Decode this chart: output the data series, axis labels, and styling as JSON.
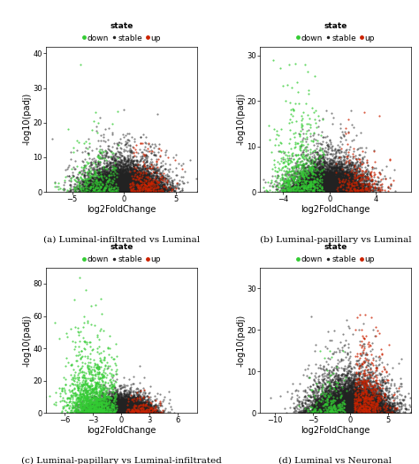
{
  "plots": [
    {
      "title": "(a) Luminal-infiltrated vs Luminal",
      "xlim": [
        -7.5,
        7
      ],
      "ylim": [
        0,
        42
      ],
      "xticks": [
        -5,
        0,
        5
      ],
      "yticks": [
        0,
        10,
        20,
        30,
        40
      ],
      "xlabel": "log2FoldChange",
      "ylabel": "-log10(padj)",
      "seed": 42,
      "down_params": {
        "n": 350,
        "x_center": -2.5,
        "x_std": 1.5,
        "y_exp_scale": 4,
        "y_max": 40
      },
      "up_params": {
        "n": 300,
        "x_center": 2.0,
        "x_std": 1.2,
        "y_exp_scale": 3,
        "y_max": 14
      },
      "stable_params": {
        "n": 9000,
        "x_std": 1.8,
        "y_exp_scale": 2.5,
        "y_max": 26
      }
    },
    {
      "title": "(b) Luminal-papillary vs Luminal",
      "xlim": [
        -6,
        7
      ],
      "ylim": [
        0,
        32
      ],
      "xticks": [
        -4,
        0,
        4
      ],
      "yticks": [
        0,
        10,
        20,
        30
      ],
      "xlabel": "log2FoldChange",
      "ylabel": "-log10(padj)",
      "seed": 17,
      "down_params": {
        "n": 700,
        "x_center": -2.5,
        "x_std": 1.3,
        "y_exp_scale": 5,
        "y_max": 29
      },
      "up_params": {
        "n": 250,
        "x_center": 2.5,
        "x_std": 1.2,
        "y_exp_scale": 3,
        "y_max": 20
      },
      "stable_params": {
        "n": 9000,
        "x_std": 1.5,
        "y_exp_scale": 2,
        "y_max": 18
      }
    },
    {
      "title": "(c) Luminal-papillary vs Luminal-infiltrated",
      "xlim": [
        -8,
        8
      ],
      "ylim": [
        0,
        90
      ],
      "xticks": [
        -6,
        -3,
        0,
        3,
        6
      ],
      "yticks": [
        0,
        20,
        40,
        60,
        80
      ],
      "xlabel": "log2FoldChange",
      "ylabel": "-log10(padj)",
      "seed": 7,
      "down_params": {
        "n": 1400,
        "x_center": -3.0,
        "x_std": 1.5,
        "y_exp_scale": 12,
        "y_max": 84
      },
      "up_params": {
        "n": 180,
        "x_center": 2.0,
        "x_std": 1.0,
        "y_exp_scale": 3,
        "y_max": 20
      },
      "stable_params": {
        "n": 9000,
        "x_std": 1.5,
        "y_exp_scale": 3,
        "y_max": 35
      }
    },
    {
      "title": "(d) Luminal vs Neuronal",
      "xlim": [
        -12,
        8
      ],
      "ylim": [
        0,
        35
      ],
      "xticks": [
        -10,
        -5,
        0,
        5
      ],
      "yticks": [
        0,
        10,
        20,
        30
      ],
      "xlabel": "log2FoldChange",
      "ylabel": "-log10(padj)",
      "seed": 99,
      "down_params": {
        "n": 250,
        "x_center": -2.5,
        "x_std": 1.5,
        "y_exp_scale": 3,
        "y_max": 15
      },
      "up_params": {
        "n": 600,
        "x_center": 2.0,
        "x_std": 1.5,
        "y_exp_scale": 5,
        "y_max": 30
      },
      "stable_params": {
        "n": 9000,
        "x_std": 2.5,
        "y_exp_scale": 2.5,
        "y_max": 28
      }
    }
  ],
  "down_color": "#33CC33",
  "up_color": "#CC2200",
  "stable_color": "#222222",
  "background_color": "#ffffff",
  "label_fontsize": 7,
  "tick_fontsize": 6,
  "legend_fontsize": 6.5,
  "point_size": 2.5,
  "alpha_stable": 0.55,
  "alpha_colored": 0.75
}
